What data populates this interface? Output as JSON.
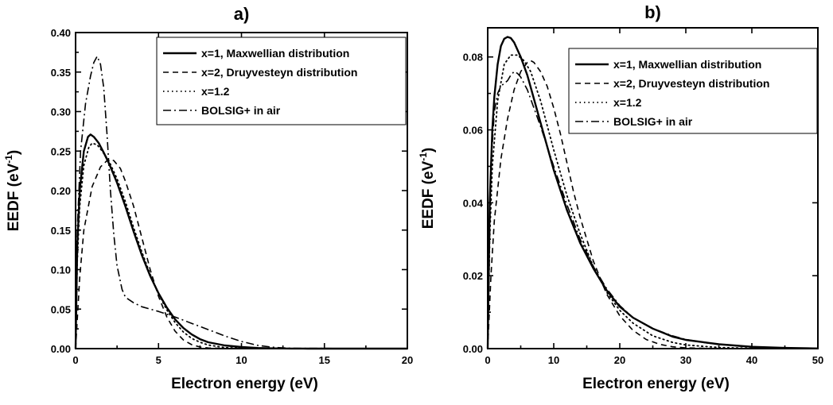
{
  "chart_data": [
    {
      "type": "line",
      "title": "a)",
      "xlabel": "Electron energy (eV)",
      "ylabel": "EEDF (eV",
      "ylabel_sup": "-1",
      "ylabel_close": ")",
      "xlim": [
        0,
        20
      ],
      "ylim": [
        0,
        0.4
      ],
      "xticks": [
        0,
        5,
        10,
        15,
        20
      ],
      "xtick_labels": [
        "0",
        "5",
        "10",
        "15",
        "20"
      ],
      "yticks": [
        0,
        0.05,
        0.1,
        0.15,
        0.2,
        0.25,
        0.3,
        0.35,
        0.4
      ],
      "ytick_labels": [
        "0.00",
        "0.05",
        "0.10",
        "0.15",
        "0.20",
        "0.25",
        "0.30",
        "0.35",
        "0.40"
      ],
      "legend_position": "top-right",
      "series": [
        {
          "name": "x=1, Maxwellian distribution",
          "style": "solid",
          "x": [
            0,
            0.1,
            0.25,
            0.5,
            0.75,
            0.9,
            1.1,
            1.4,
            1.7,
            2,
            2.5,
            3,
            3.5,
            4,
            4.5,
            5,
            5.5,
            6,
            6.5,
            7,
            7.5,
            8,
            9,
            10,
            11,
            12,
            13,
            14,
            20
          ],
          "y": [
            0,
            0.13,
            0.2,
            0.25,
            0.268,
            0.271,
            0.268,
            0.26,
            0.248,
            0.235,
            0.21,
            0.18,
            0.148,
            0.118,
            0.092,
            0.07,
            0.052,
            0.037,
            0.026,
            0.018,
            0.012,
            0.008,
            0.004,
            0.002,
            0.0008,
            0.0003,
            0.0001,
            3e-05,
            0
          ]
        },
        {
          "name": "x=2, Druyvesteyn distribution",
          "style": "dashed",
          "x": [
            0,
            0.25,
            0.5,
            1,
            1.5,
            2,
            2.3,
            2.7,
            3,
            3.5,
            4,
            4.5,
            5,
            5.5,
            6,
            6.5,
            7,
            7.5,
            8,
            9,
            10,
            20
          ],
          "y": [
            0,
            0.09,
            0.15,
            0.205,
            0.23,
            0.24,
            0.238,
            0.228,
            0.212,
            0.18,
            0.14,
            0.1,
            0.066,
            0.04,
            0.022,
            0.011,
            0.005,
            0.002,
            0.0008,
            0.0001,
            0,
            0
          ]
        },
        {
          "name": "x=1.2",
          "style": "dotted",
          "x": [
            0,
            0.1,
            0.25,
            0.5,
            0.8,
            1,
            1.3,
            1.6,
            2,
            2.5,
            3,
            3.5,
            4,
            4.5,
            5,
            5.5,
            6,
            6.5,
            7,
            7.5,
            8,
            9,
            10,
            11,
            12,
            20
          ],
          "y": [
            0,
            0.11,
            0.18,
            0.232,
            0.255,
            0.26,
            0.258,
            0.25,
            0.238,
            0.215,
            0.186,
            0.153,
            0.122,
            0.094,
            0.069,
            0.049,
            0.033,
            0.021,
            0.013,
            0.008,
            0.0045,
            0.0013,
            0.0003,
            6e-05,
            1e-05,
            0
          ]
        },
        {
          "name": "BOLSIG+ in air",
          "style": "dashdot",
          "x": [
            0,
            0.1,
            0.3,
            0.6,
            0.9,
            1.1,
            1.3,
            1.5,
            1.7,
            1.9,
            2.1,
            2.3,
            2.5,
            2.8,
            3,
            3.5,
            4,
            5,
            6,
            7,
            8,
            9,
            10,
            11,
            12,
            13,
            20
          ],
          "y": [
            0,
            0.15,
            0.25,
            0.31,
            0.345,
            0.362,
            0.37,
            0.36,
            0.33,
            0.27,
            0.2,
            0.145,
            0.105,
            0.075,
            0.065,
            0.058,
            0.053,
            0.047,
            0.04,
            0.032,
            0.024,
            0.016,
            0.009,
            0.004,
            0.0015,
            0.0004,
            0
          ]
        }
      ]
    },
    {
      "type": "line",
      "title": "b)",
      "xlabel": "Electron energy (eV)",
      "ylabel": "EEDF (eV",
      "ylabel_sup": "-1",
      "ylabel_close": ")",
      "xlim": [
        0,
        50
      ],
      "ylim": [
        0,
        0.088
      ],
      "xticks": [
        0,
        10,
        20,
        30,
        40,
        50
      ],
      "xtick_labels": [
        "0",
        "10",
        "20",
        "30",
        "40",
        "50"
      ],
      "yticks": [
        0,
        0.02,
        0.04,
        0.06,
        0.08
      ],
      "ytick_labels": [
        "0.00",
        "0.02",
        "0.04",
        "0.06",
        "0.08"
      ],
      "legend_position": "top-right",
      "series": [
        {
          "name": "x=1, Maxwellian distribution",
          "style": "solid",
          "x": [
            0,
            0.3,
            0.7,
            1,
            1.5,
            2,
            2.5,
            3,
            3.5,
            4,
            5,
            6,
            7,
            8,
            9,
            10,
            12,
            14,
            16,
            18,
            20,
            22,
            25,
            28,
            30,
            35,
            40,
            45,
            50
          ],
          "y": [
            0,
            0.04,
            0.06,
            0.069,
            0.078,
            0.083,
            0.085,
            0.0855,
            0.0852,
            0.084,
            0.08,
            0.075,
            0.0685,
            0.062,
            0.0555,
            0.049,
            0.038,
            0.029,
            0.022,
            0.016,
            0.0115,
            0.0085,
            0.0055,
            0.0033,
            0.0024,
            0.0012,
            0.0005,
            0.0002,
            5e-05
          ]
        },
        {
          "name": "x=2, Druyvesteyn distribution",
          "style": "dashed",
          "x": [
            0,
            0.5,
            1,
            2,
            3,
            4,
            5,
            6,
            6.5,
            7,
            8,
            9,
            10,
            11,
            12,
            13,
            14,
            16,
            18,
            20,
            22,
            24,
            26,
            28,
            30,
            35,
            50
          ],
          "y": [
            0,
            0.02,
            0.035,
            0.052,
            0.063,
            0.071,
            0.076,
            0.0785,
            0.079,
            0.0785,
            0.076,
            0.072,
            0.066,
            0.059,
            0.051,
            0.043,
            0.036,
            0.024,
            0.015,
            0.009,
            0.005,
            0.0025,
            0.0012,
            0.0005,
            0.0002,
            2e-05,
            0
          ]
        },
        {
          "name": "x=1.2",
          "style": "dotted",
          "x": [
            0,
            0.3,
            0.7,
            1.5,
            2.5,
            3.5,
            4.5,
            5.5,
            6.5,
            8,
            10,
            12,
            14,
            16,
            18,
            20,
            22,
            25,
            28,
            30,
            35,
            40,
            50
          ],
          "y": [
            0,
            0.03,
            0.05,
            0.068,
            0.078,
            0.0805,
            0.0805,
            0.079,
            0.076,
            0.068,
            0.0545,
            0.042,
            0.0315,
            0.0225,
            0.0155,
            0.0105,
            0.007,
            0.0035,
            0.0017,
            0.001,
            0.0003,
            8e-05,
            0
          ]
        },
        {
          "name": "BOLSIG+ in air",
          "style": "dashdot",
          "x": [
            0,
            0.5,
            1,
            1.5,
            2,
            3,
            3.5,
            4,
            4.5,
            5,
            6,
            7,
            8,
            10,
            12,
            14,
            16,
            18,
            20,
            22,
            25,
            28,
            30,
            33,
            35,
            38,
            40,
            45,
            50
          ],
          "y": [
            0,
            0.05,
            0.065,
            0.07,
            0.072,
            0.0735,
            0.075,
            0.076,
            0.0755,
            0.0745,
            0.071,
            0.066,
            0.061,
            0.05,
            0.0395,
            0.03,
            0.0225,
            0.0165,
            0.0118,
            0.0085,
            0.0055,
            0.0035,
            0.0025,
            0.0016,
            0.0012,
            0.0007,
            0.0005,
            0.0002,
            5e-05
          ]
        }
      ]
    }
  ]
}
